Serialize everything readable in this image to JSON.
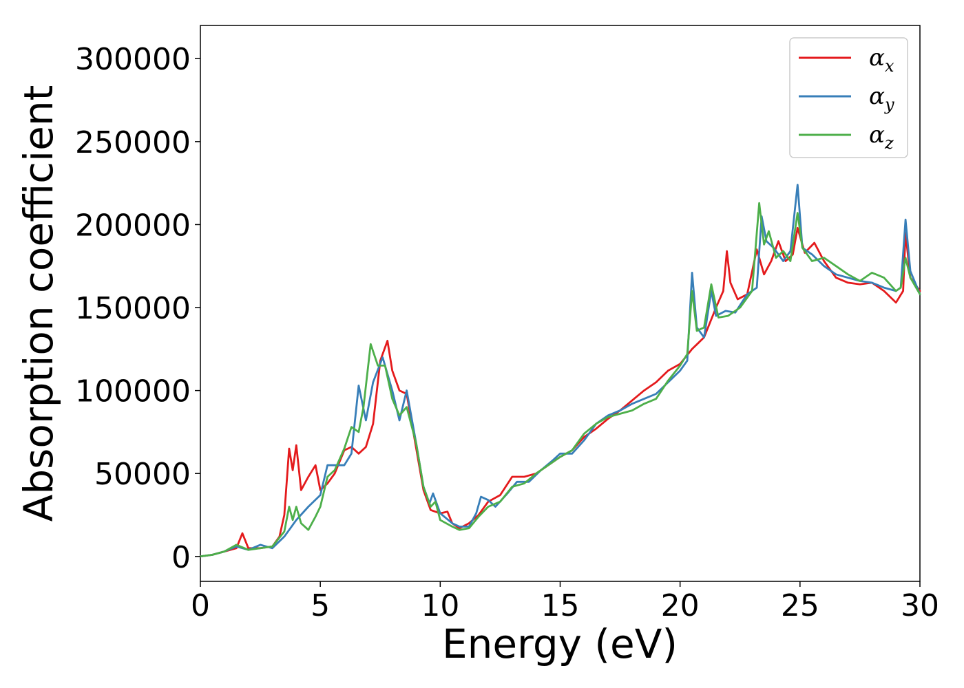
{
  "chart_data": {
    "type": "line",
    "title": "",
    "xlabel": "Energy (eV)",
    "ylabel": "Absorption coefficient",
    "xlim": [
      0,
      30
    ],
    "ylim": [
      -15000,
      320000
    ],
    "x_ticks": [
      0,
      5,
      10,
      15,
      20,
      25,
      30
    ],
    "x_tick_labels": [
      "0",
      "5",
      "10",
      "15",
      "20",
      "25",
      "30"
    ],
    "y_ticks": [
      0,
      50000,
      100000,
      150000,
      200000,
      250000,
      300000
    ],
    "y_tick_labels": [
      "0",
      "50000",
      "100000",
      "150000",
      "200000",
      "250000",
      "300000"
    ],
    "grid": false,
    "legend_position": "top-right",
    "series": [
      {
        "name": "αx",
        "legend_symbol": "α",
        "legend_subscript": "x",
        "color": "#e41a1c",
        "points": [
          [
            0,
            0
          ],
          [
            0.5,
            1000
          ],
          [
            1,
            3000
          ],
          [
            1.5,
            5000
          ],
          [
            1.75,
            14000
          ],
          [
            2,
            5000
          ],
          [
            2.5,
            5000
          ],
          [
            3,
            6000
          ],
          [
            3.3,
            12000
          ],
          [
            3.5,
            25000
          ],
          [
            3.7,
            65000
          ],
          [
            3.85,
            52000
          ],
          [
            4,
            67000
          ],
          [
            4.2,
            40000
          ],
          [
            4.5,
            48000
          ],
          [
            4.8,
            55000
          ],
          [
            5,
            40000
          ],
          [
            5.3,
            44000
          ],
          [
            5.6,
            50000
          ],
          [
            6,
            64000
          ],
          [
            6.3,
            66000
          ],
          [
            6.6,
            62000
          ],
          [
            6.9,
            66000
          ],
          [
            7.2,
            80000
          ],
          [
            7.5,
            118000
          ],
          [
            7.8,
            130000
          ],
          [
            8,
            112000
          ],
          [
            8.3,
            100000
          ],
          [
            8.6,
            98000
          ],
          [
            9,
            65000
          ],
          [
            9.3,
            40000
          ],
          [
            9.6,
            28000
          ],
          [
            10,
            26000
          ],
          [
            10.3,
            27000
          ],
          [
            10.5,
            20000
          ],
          [
            10.8,
            17000
          ],
          [
            11.2,
            20000
          ],
          [
            11.6,
            25000
          ],
          [
            12,
            33000
          ],
          [
            12.5,
            37000
          ],
          [
            13,
            48000
          ],
          [
            13.5,
            48000
          ],
          [
            14,
            50000
          ],
          [
            14.5,
            55000
          ],
          [
            15,
            60000
          ],
          [
            15.5,
            64000
          ],
          [
            16,
            72000
          ],
          [
            16.5,
            77000
          ],
          [
            17,
            83000
          ],
          [
            17.5,
            88000
          ],
          [
            18,
            94000
          ],
          [
            18.5,
            100000
          ],
          [
            19,
            105000
          ],
          [
            19.5,
            112000
          ],
          [
            20,
            116000
          ],
          [
            20.5,
            125000
          ],
          [
            21,
            132000
          ],
          [
            21.5,
            150000
          ],
          [
            21.8,
            160000
          ],
          [
            21.95,
            184000
          ],
          [
            22.1,
            165000
          ],
          [
            22.4,
            155000
          ],
          [
            22.8,
            158000
          ],
          [
            23.2,
            185000
          ],
          [
            23.5,
            170000
          ],
          [
            23.8,
            178000
          ],
          [
            24.1,
            190000
          ],
          [
            24.4,
            178000
          ],
          [
            24.7,
            182000
          ],
          [
            24.9,
            198000
          ],
          [
            25.2,
            183000
          ],
          [
            25.6,
            189000
          ],
          [
            26,
            178000
          ],
          [
            26.5,
            168000
          ],
          [
            27,
            165000
          ],
          [
            27.5,
            164000
          ],
          [
            28,
            165000
          ],
          [
            28.5,
            160000
          ],
          [
            29,
            153000
          ],
          [
            29.3,
            160000
          ],
          [
            29.4,
            195000
          ],
          [
            29.6,
            168000
          ],
          [
            30,
            160000
          ]
        ]
      },
      {
        "name": "αy",
        "legend_symbol": "α",
        "legend_subscript": "y",
        "color": "#377eb8",
        "points": [
          [
            0,
            0
          ],
          [
            0.5,
            1000
          ],
          [
            1,
            3000
          ],
          [
            1.5,
            6000
          ],
          [
            2,
            4000
          ],
          [
            2.5,
            7000
          ],
          [
            3,
            5000
          ],
          [
            3.5,
            12000
          ],
          [
            3.8,
            18000
          ],
          [
            4,
            22000
          ],
          [
            4.5,
            30000
          ],
          [
            5,
            37000
          ],
          [
            5.3,
            55000
          ],
          [
            5.6,
            55000
          ],
          [
            6,
            55000
          ],
          [
            6.3,
            62000
          ],
          [
            6.6,
            103000
          ],
          [
            6.9,
            82000
          ],
          [
            7.2,
            105000
          ],
          [
            7.6,
            120000
          ],
          [
            8,
            100000
          ],
          [
            8.3,
            82000
          ],
          [
            8.6,
            100000
          ],
          [
            9,
            68000
          ],
          [
            9.3,
            42000
          ],
          [
            9.55,
            32000
          ],
          [
            9.7,
            38000
          ],
          [
            10,
            26000
          ],
          [
            10.5,
            20000
          ],
          [
            10.8,
            18000
          ],
          [
            11.2,
            18000
          ],
          [
            11.5,
            26000
          ],
          [
            11.7,
            36000
          ],
          [
            12,
            34000
          ],
          [
            12.3,
            30000
          ],
          [
            12.8,
            38000
          ],
          [
            13.2,
            45000
          ],
          [
            13.7,
            45000
          ],
          [
            14.2,
            52000
          ],
          [
            14.7,
            58000
          ],
          [
            15,
            62000
          ],
          [
            15.5,
            62000
          ],
          [
            16,
            70000
          ],
          [
            16.5,
            80000
          ],
          [
            17,
            85000
          ],
          [
            17.5,
            88000
          ],
          [
            18,
            92000
          ],
          [
            18.5,
            95000
          ],
          [
            19,
            98000
          ],
          [
            19.5,
            105000
          ],
          [
            20,
            112000
          ],
          [
            20.3,
            118000
          ],
          [
            20.5,
            171000
          ],
          [
            20.7,
            138000
          ],
          [
            21,
            132000
          ],
          [
            21.3,
            160000
          ],
          [
            21.5,
            145000
          ],
          [
            21.9,
            148000
          ],
          [
            22.3,
            147000
          ],
          [
            22.8,
            158000
          ],
          [
            23.2,
            162000
          ],
          [
            23.4,
            205000
          ],
          [
            23.6,
            190000
          ],
          [
            23.9,
            186000
          ],
          [
            24.3,
            178000
          ],
          [
            24.6,
            184000
          ],
          [
            24.9,
            224000
          ],
          [
            25.1,
            186000
          ],
          [
            25.5,
            182000
          ],
          [
            26,
            175000
          ],
          [
            26.5,
            170000
          ],
          [
            27,
            168000
          ],
          [
            27.5,
            166000
          ],
          [
            28,
            165000
          ],
          [
            28.5,
            162000
          ],
          [
            29,
            160000
          ],
          [
            29.2,
            162000
          ],
          [
            29.4,
            203000
          ],
          [
            29.6,
            172000
          ],
          [
            30,
            158000
          ]
        ]
      },
      {
        "name": "αz",
        "legend_symbol": "α",
        "legend_subscript": "z",
        "color": "#4daf4a",
        "points": [
          [
            0,
            0
          ],
          [
            0.5,
            1000
          ],
          [
            1,
            3000
          ],
          [
            1.5,
            7000
          ],
          [
            2,
            4000
          ],
          [
            2.5,
            5000
          ],
          [
            3,
            6000
          ],
          [
            3.5,
            15000
          ],
          [
            3.7,
            30000
          ],
          [
            3.85,
            22000
          ],
          [
            4,
            30000
          ],
          [
            4.2,
            20000
          ],
          [
            4.5,
            16000
          ],
          [
            4.8,
            24000
          ],
          [
            5,
            30000
          ],
          [
            5.3,
            48000
          ],
          [
            5.6,
            52000
          ],
          [
            6,
            65000
          ],
          [
            6.3,
            78000
          ],
          [
            6.6,
            75000
          ],
          [
            6.8,
            90000
          ],
          [
            7.1,
            128000
          ],
          [
            7.4,
            115000
          ],
          [
            7.7,
            115000
          ],
          [
            8,
            95000
          ],
          [
            8.3,
            85000
          ],
          [
            8.6,
            90000
          ],
          [
            9,
            68000
          ],
          [
            9.3,
            42000
          ],
          [
            9.6,
            30000
          ],
          [
            9.8,
            33000
          ],
          [
            10,
            22000
          ],
          [
            10.5,
            18000
          ],
          [
            10.8,
            16000
          ],
          [
            11.2,
            17000
          ],
          [
            11.6,
            24000
          ],
          [
            12,
            30000
          ],
          [
            12.5,
            33000
          ],
          [
            13,
            42000
          ],
          [
            13.5,
            44000
          ],
          [
            14,
            50000
          ],
          [
            14.5,
            55000
          ],
          [
            15,
            60000
          ],
          [
            15.5,
            64000
          ],
          [
            16,
            74000
          ],
          [
            16.5,
            80000
          ],
          [
            17,
            84000
          ],
          [
            17.5,
            86000
          ],
          [
            18,
            88000
          ],
          [
            18.5,
            92000
          ],
          [
            19,
            95000
          ],
          [
            19.5,
            106000
          ],
          [
            20,
            115000
          ],
          [
            20.3,
            122000
          ],
          [
            20.5,
            160000
          ],
          [
            20.7,
            136000
          ],
          [
            21,
            138000
          ],
          [
            21.3,
            164000
          ],
          [
            21.6,
            144000
          ],
          [
            22,
            145000
          ],
          [
            22.5,
            150000
          ],
          [
            23,
            160000
          ],
          [
            23.3,
            213000
          ],
          [
            23.5,
            188000
          ],
          [
            23.7,
            196000
          ],
          [
            24,
            180000
          ],
          [
            24.3,
            184000
          ],
          [
            24.6,
            178000
          ],
          [
            24.9,
            207000
          ],
          [
            25.1,
            186000
          ],
          [
            25.5,
            178000
          ],
          [
            26,
            180000
          ],
          [
            26.5,
            175000
          ],
          [
            27,
            170000
          ],
          [
            27.5,
            166000
          ],
          [
            28,
            171000
          ],
          [
            28.5,
            168000
          ],
          [
            29,
            160000
          ],
          [
            29.2,
            162000
          ],
          [
            29.4,
            180000
          ],
          [
            29.6,
            168000
          ],
          [
            30,
            158000
          ]
        ]
      }
    ]
  }
}
